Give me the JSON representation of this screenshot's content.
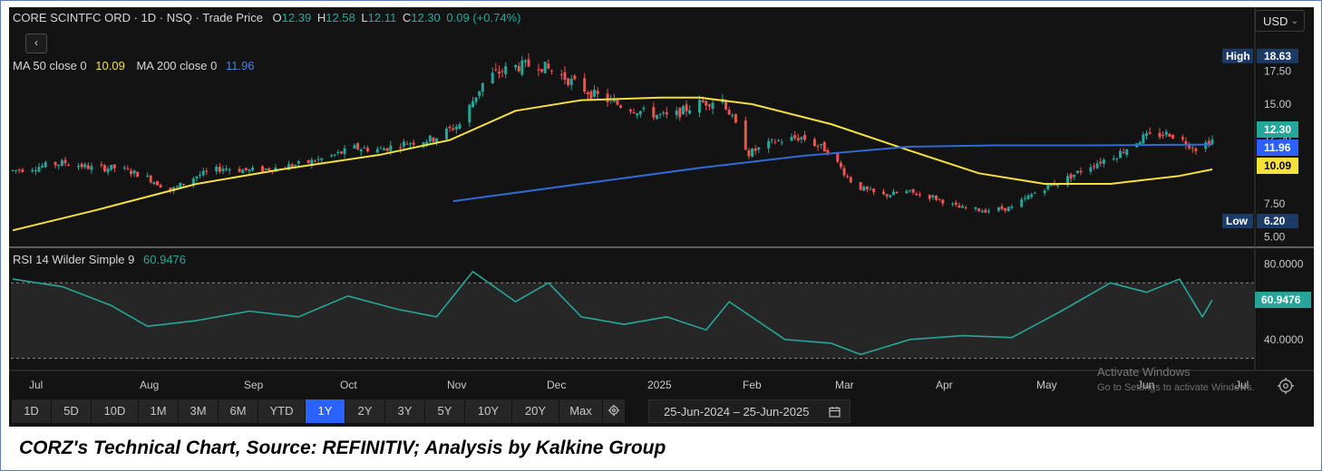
{
  "header": {
    "symbol": "CORE SCINTFC ORD · 1D · NSQ · Trade Price",
    "o_label": "O",
    "o_value": "12.39",
    "h_label": "H",
    "h_value": "12.58",
    "l_label": "L",
    "l_value": "12.11",
    "c_label": "C",
    "c_value": "12.30",
    "change": "0.09 (+0.74%)"
  },
  "back_button": "‹",
  "indicators": {
    "ma50_label": "MA 50 close 0",
    "ma50_value": "10.09",
    "ma200_label": "MA 200 close 0",
    "ma200_value": "11.96",
    "rsi_label": "RSI 14 Wilder Simple 9",
    "rsi_value": "60.9476"
  },
  "currency": "USD",
  "colors": {
    "background": "#131313",
    "up": "#26a69a",
    "down": "#ef5350",
    "ma50": "#f5e13b",
    "ma200": "#2f6bd6",
    "rsi": "#26a69a",
    "active_timeframe": "#2962ff",
    "badge_ma50": "#f5e13b",
    "badge_ma200": "#2962ff",
    "badge_close": "#26a69a",
    "badge_range": "#1c3a66"
  },
  "price_axis": {
    "ticks": [
      "17.50",
      "15.00",
      "12.50",
      "7.50",
      "5.00"
    ],
    "high_label": "High",
    "high_value": "18.63",
    "low_label": "Low",
    "low_value": "6.20",
    "close_value": "12.30",
    "ma200_value": "11.96",
    "ma50_value": "10.09"
  },
  "rsi_axis": {
    "ticks": [
      "80.0000",
      "40.0000"
    ],
    "current": "60.9476"
  },
  "x_axis": {
    "labels": [
      "Jul",
      "Aug",
      "Sep",
      "Oct",
      "Nov",
      "Dec",
      "2025",
      "Feb",
      "Mar",
      "Apr",
      "May",
      "Jun",
      "Jul"
    ]
  },
  "timeframes": [
    "1D",
    "5D",
    "10D",
    "1M",
    "3M",
    "6M",
    "YTD",
    "1Y",
    "2Y",
    "3Y",
    "5Y",
    "10Y",
    "20Y",
    "Max"
  ],
  "active_timeframe": "1Y",
  "date_range": "25-Jun-2024  –  25-Jun-2025",
  "watermark": {
    "title": "Activate Windows",
    "subtitle": "Go to Settings to activate Windows."
  },
  "caption": "CORZ's Technical Chart, Source: REFINITIV; Analysis by Kalkine Group",
  "chart_data": [
    {
      "type": "candlestick",
      "title": "CORE SCINTFC ORD · 1D · NSQ · Trade Price",
      "x_range": [
        "2024-06-25",
        "2025-06-25"
      ],
      "ylim": [
        4.5,
        19.5
      ],
      "y_ticks": [
        5.0,
        7.5,
        12.5,
        15.0,
        17.5
      ],
      "high": 18.63,
      "low": 6.2,
      "last": {
        "open": 12.39,
        "high": 12.58,
        "low": 12.11,
        "close": 12.3,
        "change": 0.09,
        "change_pct": 0.74
      },
      "close_series": {
        "x": [
          "2024-06-25",
          "2024-07-03",
          "2024-07-11",
          "2024-07-19",
          "2024-07-27",
          "2024-08-04",
          "2024-08-12",
          "2024-08-20",
          "2024-08-28",
          "2024-09-05",
          "2024-09-13",
          "2024-09-21",
          "2024-09-29",
          "2024-10-07",
          "2024-10-15",
          "2024-10-23",
          "2024-10-31",
          "2024-11-08",
          "2024-11-16",
          "2024-11-24",
          "2024-12-02",
          "2024-12-10",
          "2024-12-18",
          "2024-12-26",
          "2025-01-03",
          "2025-01-11",
          "2025-01-19",
          "2025-01-27",
          "2025-02-04",
          "2025-02-12",
          "2025-02-20",
          "2025-02-28",
          "2025-03-08",
          "2025-03-16",
          "2025-03-24",
          "2025-04-01",
          "2025-04-09",
          "2025-04-17",
          "2025-04-25",
          "2025-05-03",
          "2025-05-11",
          "2025-05-19",
          "2025-05-27",
          "2025-06-04",
          "2025-06-12",
          "2025-06-20",
          "2025-06-25"
        ],
        "values": [
          10.0,
          10.3,
          10.6,
          10.2,
          10.2,
          9.6,
          8.5,
          9.6,
          10.2,
          10.0,
          10.2,
          10.5,
          11.0,
          11.7,
          11.6,
          12.1,
          12.4,
          13.5,
          17.0,
          17.8,
          18.0,
          17.0,
          15.8,
          15.0,
          14.4,
          14.0,
          15.0,
          15.4,
          11.3,
          12.2,
          12.5,
          11.5,
          8.9,
          8.1,
          8.4,
          8.0,
          7.2,
          7.0,
          7.2,
          8.5,
          9.3,
          10.4,
          11.2,
          12.5,
          12.8,
          11.7,
          12.3
        ]
      },
      "series": [
        {
          "name": "MA 50 close 0",
          "x": [
            "2024-06-25",
            "2024-07-20",
            "2024-08-20",
            "2024-09-15",
            "2024-10-15",
            "2024-11-05",
            "2024-11-25",
            "2024-12-15",
            "2025-01-08",
            "2025-01-20",
            "2025-02-05",
            "2025-03-01",
            "2025-03-25",
            "2025-04-15",
            "2025-05-05",
            "2025-05-25",
            "2025-06-15",
            "2025-06-25"
          ],
          "values": [
            5.5,
            7.0,
            9.0,
            10.1,
            11.2,
            12.3,
            14.5,
            15.3,
            15.5,
            15.5,
            15.0,
            13.5,
            11.5,
            9.8,
            9.0,
            9.0,
            9.6,
            10.09
          ]
        },
        {
          "name": "MA 200 close 0",
          "x": [
            "2024-11-06",
            "2024-12-15",
            "2025-01-20",
            "2025-02-20",
            "2025-03-25",
            "2025-04-20",
            "2025-05-20",
            "2025-06-25"
          ],
          "values": [
            7.7,
            9.0,
            10.2,
            11.1,
            11.8,
            11.9,
            11.9,
            11.96
          ]
        }
      ]
    },
    {
      "type": "line",
      "title": "RSI 14 Wilder Simple 9",
      "ylim": [
        25,
        85
      ],
      "y_ticks": [
        40,
        80
      ],
      "reference_lines": [
        30,
        70
      ],
      "series": [
        {
          "name": "RSI 14 Wilder Simple 9",
          "x": [
            "2024-06-25",
            "2024-07-10",
            "2024-07-25",
            "2024-08-05",
            "2024-08-20",
            "2024-09-05",
            "2024-09-20",
            "2024-10-05",
            "2024-10-20",
            "2024-11-01",
            "2024-11-12",
            "2024-11-25",
            "2024-12-05",
            "2024-12-15",
            "2024-12-28",
            "2025-01-10",
            "2025-01-22",
            "2025-01-29",
            "2025-02-15",
            "2025-03-01",
            "2025-03-10",
            "2025-03-25",
            "2025-04-10",
            "2025-04-25",
            "2025-05-10",
            "2025-05-25",
            "2025-06-05",
            "2025-06-15",
            "2025-06-22",
            "2025-06-25"
          ],
          "values": [
            72,
            68,
            58,
            47,
            50,
            55,
            52,
            63,
            56,
            52,
            76,
            60,
            70,
            52,
            48,
            52,
            45,
            60,
            40,
            38,
            32,
            40,
            42,
            41,
            55,
            70,
            65,
            72,
            52,
            60.9476
          ]
        }
      ]
    }
  ]
}
